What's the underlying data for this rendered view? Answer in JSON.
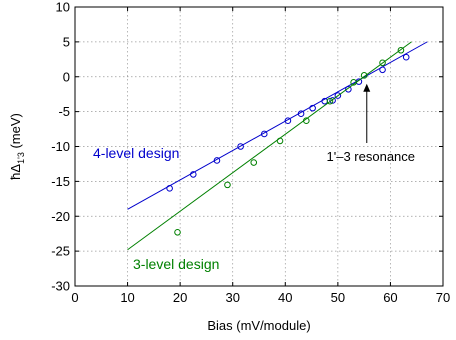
{
  "chart_data": {
    "type": "scatter",
    "xlabel": "Bias (mV/module)",
    "ylabel_main": "ħΔ",
    "ylabel_sub": "1'3",
    "ylabel_unit": " (meV)",
    "xlim": [
      0,
      70
    ],
    "ylim": [
      -30,
      10
    ],
    "xticks": [
      0,
      10,
      20,
      30,
      40,
      50,
      60,
      70
    ],
    "yticks": [
      -30,
      -25,
      -20,
      -15,
      -10,
      -5,
      0,
      5,
      10
    ],
    "grid": true,
    "colors": {
      "four_level": "#0000cc",
      "three_level": "#008000",
      "annotation": "#000000"
    },
    "series": [
      {
        "name": "4-level design",
        "points": [
          [
            18,
            -16
          ],
          [
            22.5,
            -14
          ],
          [
            27,
            -12
          ],
          [
            31.5,
            -10
          ],
          [
            36,
            -8.2
          ],
          [
            40.5,
            -6.3
          ],
          [
            43,
            -5.3
          ],
          [
            45.2,
            -4.5
          ],
          [
            47.5,
            -3.5
          ],
          [
            49,
            -3.4
          ],
          [
            50,
            -2.7
          ],
          [
            52,
            -1.8
          ],
          [
            54,
            -0.7
          ],
          [
            58.5,
            1
          ],
          [
            63,
            2.8
          ]
        ],
        "fit": [
          [
            10,
            -19
          ],
          [
            67,
            5
          ]
        ]
      },
      {
        "name": "3-level design",
        "points": [
          [
            19.5,
            -22.3
          ],
          [
            29,
            -15.5
          ],
          [
            34,
            -12.3
          ],
          [
            39,
            -9.2
          ],
          [
            44,
            -6.3
          ],
          [
            48.5,
            -3.5
          ],
          [
            53,
            -0.8
          ],
          [
            55,
            0.2
          ],
          [
            58.5,
            2
          ],
          [
            62,
            3.8
          ]
        ],
        "fit": [
          [
            10,
            -24.8
          ],
          [
            64,
            5
          ]
        ]
      }
    ],
    "annotations": [
      {
        "text": "1'–3 resonance",
        "arrow_from": [
          55.5,
          -9.5
        ],
        "arrow_to": [
          55.5,
          -1
        ]
      }
    ]
  }
}
